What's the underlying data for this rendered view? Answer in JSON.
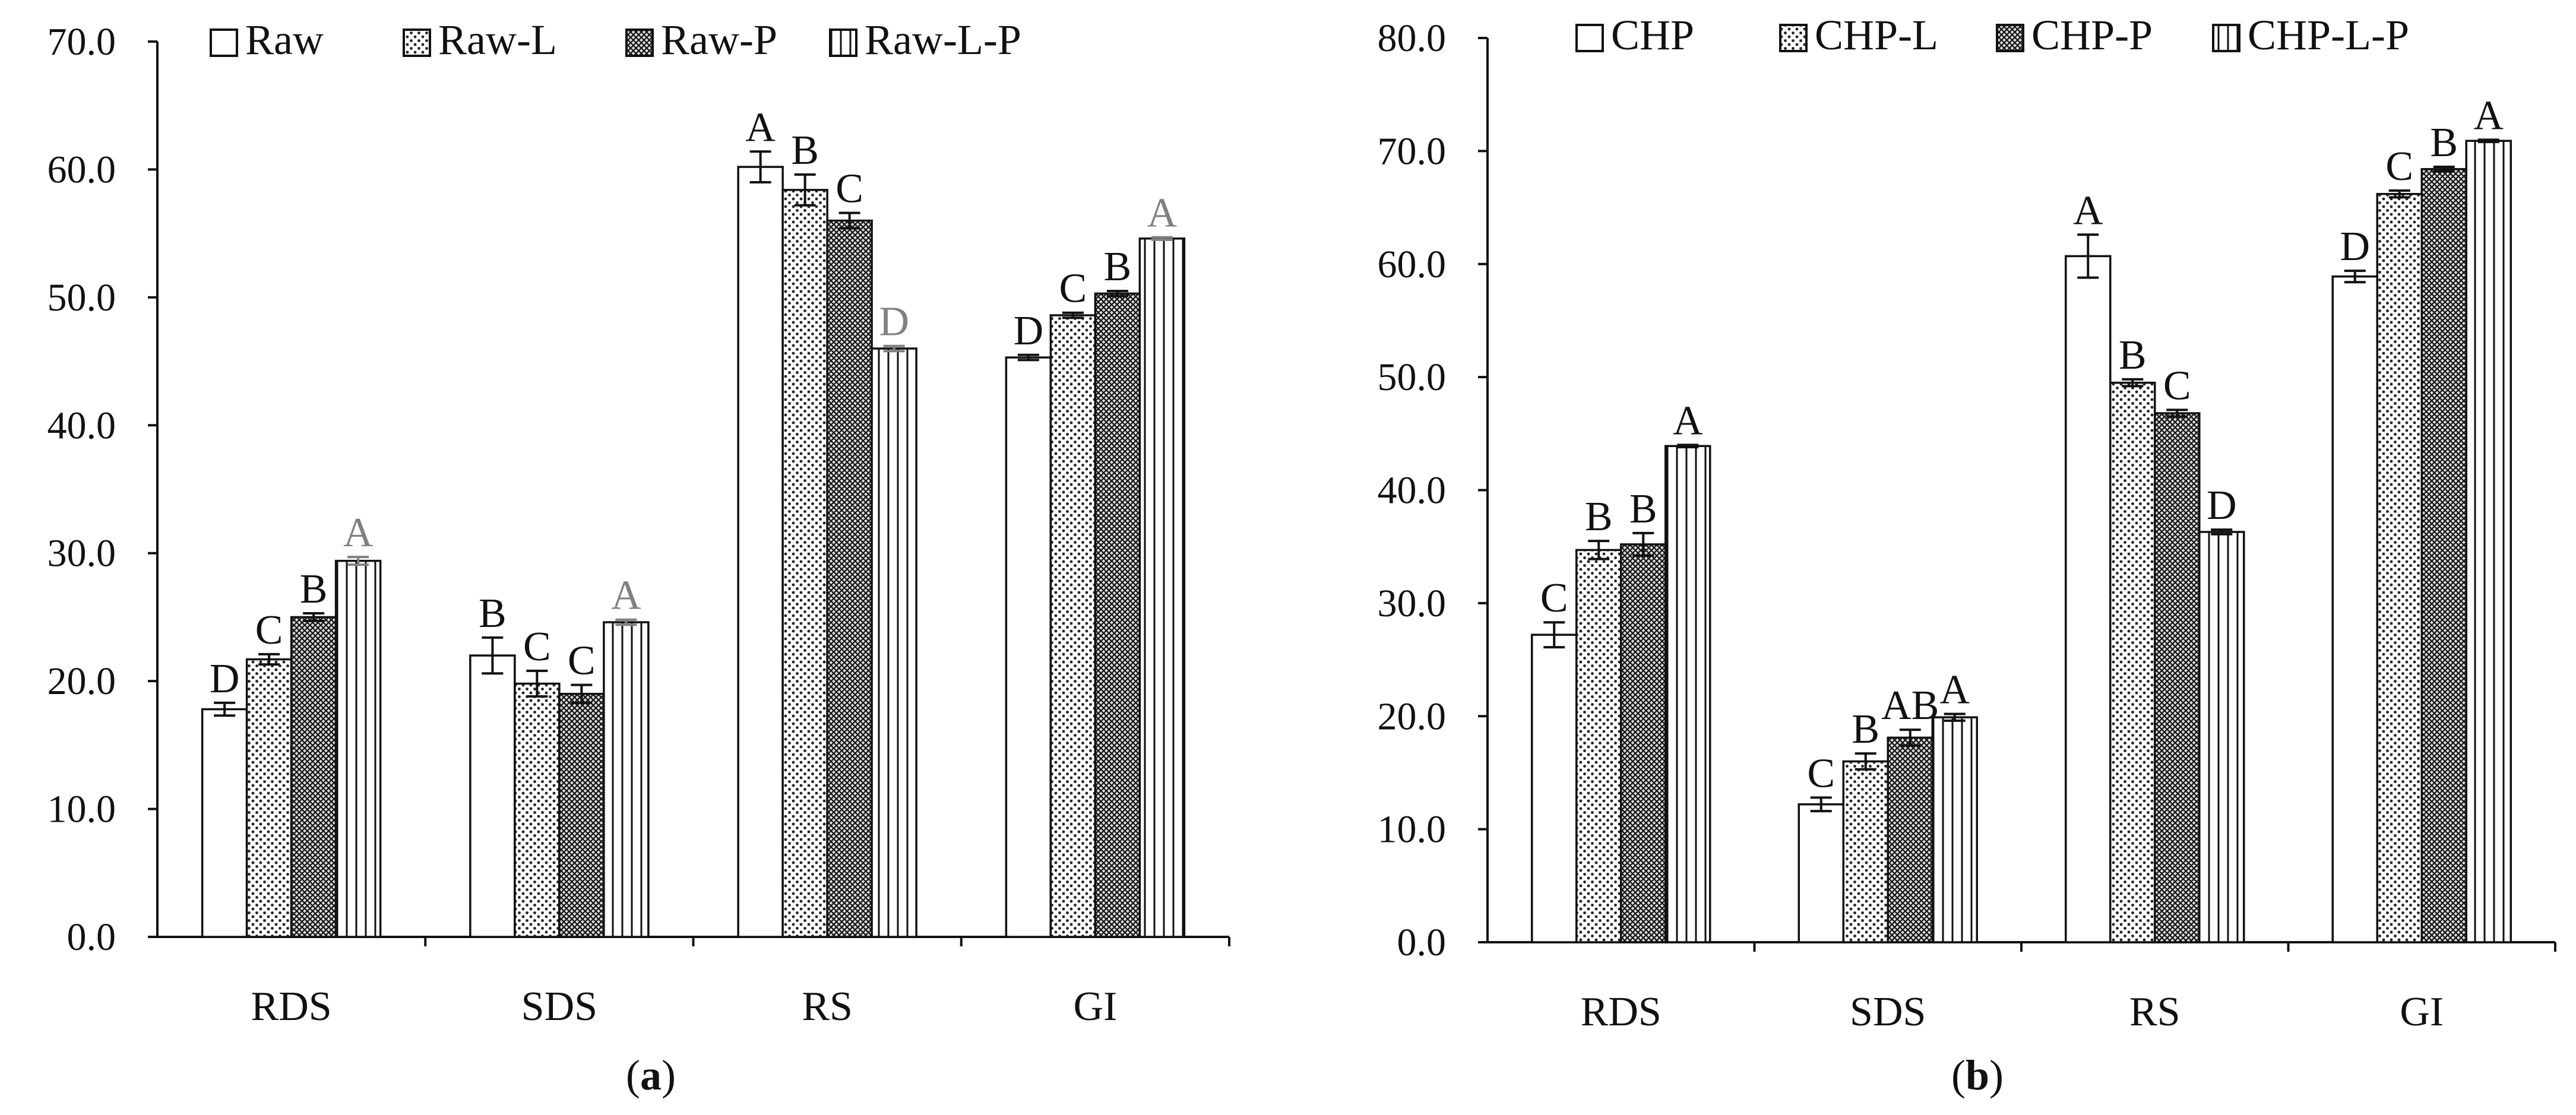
{
  "chart_data": [
    {
      "type": "bar",
      "panel": "(a)",
      "panel_letter": "a",
      "categories": [
        "RDS",
        "SDS",
        "RS",
        "GI"
      ],
      "ylim": [
        0,
        70
      ],
      "yticks": [
        "0.0",
        "10.0",
        "20.0",
        "30.0",
        "40.0",
        "50.0",
        "60.0",
        "70.0"
      ],
      "legend_position": "top-left",
      "series": [
        {
          "name": "Raw",
          "pattern": "plain",
          "values": [
            17.8,
            22.0,
            60.2,
            45.3
          ],
          "errors": [
            0.5,
            1.4,
            1.2,
            0.2
          ],
          "labels": [
            "D",
            "B",
            "A",
            "D"
          ]
        },
        {
          "name": "Raw-L",
          "pattern": "dots",
          "values": [
            21.7,
            19.8,
            58.4,
            48.6
          ],
          "errors": [
            0.4,
            1.0,
            1.2,
            0.2
          ],
          "labels": [
            "C",
            "C",
            "B",
            "C"
          ]
        },
        {
          "name": "Raw-P",
          "pattern": "crosshatch",
          "values": [
            25.0,
            19.0,
            56.0,
            50.3
          ],
          "errors": [
            0.3,
            0.7,
            0.6,
            0.2
          ],
          "labels": [
            "B",
            "C",
            "C",
            "B"
          ]
        },
        {
          "name": "Raw-L-P",
          "pattern": "vlines",
          "values": [
            29.4,
            24.6,
            46.0,
            54.6
          ],
          "errors": [
            0.3,
            0.2,
            0.2,
            0.1
          ],
          "labels": [
            "A",
            "A",
            "D",
            "A"
          ],
          "label_color": "#808080"
        }
      ]
    },
    {
      "type": "bar",
      "panel": "(b)",
      "panel_letter": "b",
      "categories": [
        "RDS",
        "SDS",
        "RS",
        "GI"
      ],
      "ylim": [
        0,
        80
      ],
      "yticks": [
        "0.0",
        "10.0",
        "20.0",
        "30.0",
        "40.0",
        "50.0",
        "60.0",
        "70.0",
        "80.0"
      ],
      "legend_position": "top",
      "series": [
        {
          "name": "CHP",
          "pattern": "plain",
          "values": [
            27.2,
            12.2,
            60.7,
            58.9
          ],
          "errors": [
            1.1,
            0.6,
            1.9,
            0.5
          ],
          "labels": [
            "C",
            "C",
            "A",
            "D"
          ]
        },
        {
          "name": "CHP-L",
          "pattern": "dots",
          "values": [
            34.7,
            16.0,
            49.5,
            66.2
          ],
          "errors": [
            0.8,
            0.7,
            0.3,
            0.3
          ],
          "labels": [
            "B",
            "B",
            "B",
            "C"
          ]
        },
        {
          "name": "CHP-P",
          "pattern": "crosshatch",
          "values": [
            35.2,
            18.1,
            46.8,
            68.4
          ],
          "errors": [
            1.0,
            0.7,
            0.3,
            0.2
          ],
          "labels": [
            "B",
            "AB",
            "C",
            "B"
          ]
        },
        {
          "name": "CHP-L-P",
          "pattern": "vlines",
          "values": [
            43.9,
            19.9,
            36.3,
            70.9
          ],
          "errors": [
            0.1,
            0.3,
            0.2,
            0.1
          ],
          "labels": [
            "A",
            "A",
            "D",
            "A"
          ]
        }
      ]
    }
  ]
}
